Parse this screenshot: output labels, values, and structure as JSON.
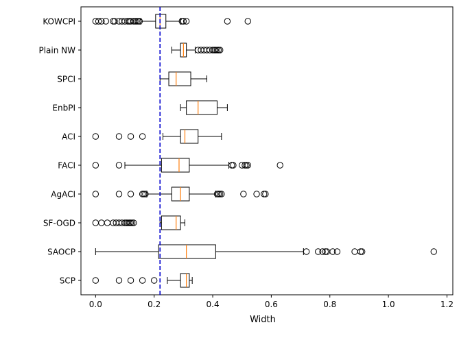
{
  "chart_data": {
    "type": "boxplot",
    "orientation": "horizontal",
    "title": "",
    "xlabel": "Width",
    "ylabel": "",
    "xlim": [
      -0.05,
      1.22
    ],
    "x_ticks": [
      0.0,
      0.2,
      0.4,
      0.6,
      0.8,
      1.0,
      1.2
    ],
    "x_tick_labels": [
      "0.0",
      "0.2",
      "0.4",
      "0.6",
      "0.8",
      "1.0",
      "1.2"
    ],
    "grid": false,
    "reference_line": {
      "x": 0.22,
      "style": "dashed",
      "color": "#0000cc"
    },
    "colors": {
      "box": "#000000",
      "median": "#ff7f0e",
      "flier": "#000000"
    },
    "series": [
      {
        "name": "KOWCPI",
        "whisker_low": 0.155,
        "q1": 0.205,
        "median": 0.22,
        "q3": 0.24,
        "whisker_high": 0.29,
        "fliers": [
          0.0,
          0.01,
          0.02,
          0.035,
          0.06,
          0.065,
          0.08,
          0.09,
          0.1,
          0.11,
          0.115,
          0.12,
          0.13,
          0.135,
          0.14,
          0.145,
          0.15,
          0.295,
          0.3,
          0.31,
          0.45,
          0.52
        ]
      },
      {
        "name": "Plain NW",
        "whisker_low": 0.26,
        "q1": 0.29,
        "median": 0.3,
        "q3": 0.31,
        "whisker_high": 0.34,
        "fliers": [
          0.35,
          0.36,
          0.37,
          0.38,
          0.39,
          0.4,
          0.405,
          0.41,
          0.415,
          0.42,
          0.425
        ]
      },
      {
        "name": "SPCI",
        "whisker_low": 0.22,
        "q1": 0.25,
        "median": 0.275,
        "q3": 0.325,
        "whisker_high": 0.38,
        "fliers": []
      },
      {
        "name": "EnbPI",
        "whisker_low": 0.29,
        "q1": 0.31,
        "median": 0.35,
        "q3": 0.415,
        "whisker_high": 0.45,
        "fliers": []
      },
      {
        "name": "ACI",
        "whisker_low": 0.23,
        "q1": 0.29,
        "median": 0.305,
        "q3": 0.35,
        "whisker_high": 0.43,
        "fliers": [
          0.0,
          0.08,
          0.12,
          0.16
        ]
      },
      {
        "name": "FACI",
        "whisker_low": 0.1,
        "q1": 0.225,
        "median": 0.285,
        "q3": 0.32,
        "whisker_high": 0.455,
        "fliers": [
          0.0,
          0.08,
          0.465,
          0.47,
          0.5,
          0.51,
          0.515,
          0.52,
          0.63
        ]
      },
      {
        "name": "AgACI",
        "whisker_low": 0.175,
        "q1": 0.26,
        "median": 0.29,
        "q3": 0.32,
        "whisker_high": 0.41,
        "fliers": [
          0.0,
          0.08,
          0.12,
          0.16,
          0.165,
          0.17,
          0.415,
          0.42,
          0.425,
          0.43,
          0.505,
          0.55,
          0.575,
          0.58
        ]
      },
      {
        "name": "SF-OGD",
        "whisker_low": 0.22,
        "q1": 0.225,
        "median": 0.275,
        "q3": 0.29,
        "whisker_high": 0.305,
        "fliers": [
          0.0,
          0.02,
          0.04,
          0.06,
          0.07,
          0.08,
          0.09,
          0.1,
          0.105,
          0.11,
          0.115,
          0.12,
          0.125,
          0.13
        ]
      },
      {
        "name": "SAOCP",
        "whisker_low": 0.0,
        "q1": 0.215,
        "median": 0.31,
        "q3": 0.41,
        "whisker_high": 0.71,
        "fliers": [
          0.72,
          0.76,
          0.775,
          0.785,
          0.79,
          0.81,
          0.825,
          0.885,
          0.905,
          0.91,
          1.155
        ]
      },
      {
        "name": "SCP",
        "whisker_low": 0.245,
        "q1": 0.29,
        "median": 0.31,
        "q3": 0.32,
        "whisker_high": 0.33,
        "fliers": [
          0.0,
          0.08,
          0.12,
          0.16,
          0.2
        ]
      }
    ]
  }
}
